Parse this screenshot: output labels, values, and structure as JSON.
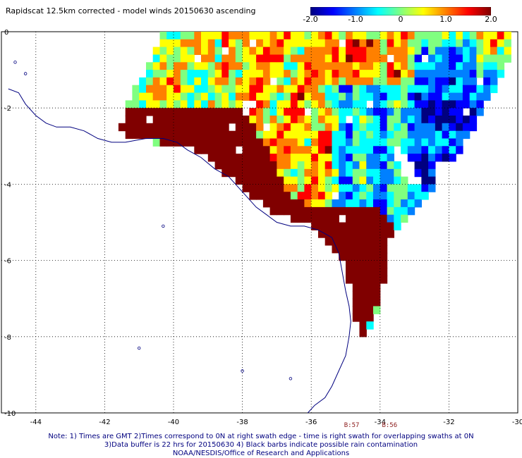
{
  "title": "Rapidscat 12.5km corrected - model winds 20150630 ascending",
  "colorbar": {
    "labels": [
      "-2.0",
      "-1.0",
      "0",
      "1.0",
      "2.0"
    ],
    "label_values": [
      -2.0,
      -1.0,
      0.0,
      1.0,
      2.0
    ],
    "range": [
      -2.0,
      2.0
    ],
    "colors": [
      "#000080",
      "#0000ff",
      "#0080ff",
      "#00ffff",
      "#80ff80",
      "#ffff00",
      "#ff8000",
      "#ff0000",
      "#800000"
    ]
  },
  "map": {
    "lon_range": [
      -45,
      -30
    ],
    "lat_range": [
      -10,
      0
    ],
    "x_ticks": [
      "-44",
      "-42",
      "-40",
      "-38",
      "-36",
      "-34",
      "-32",
      "-30"
    ],
    "x_tick_values": [
      -44,
      -42,
      -40,
      -38,
      -36,
      -34,
      -32,
      -30
    ],
    "y_ticks": [
      "0",
      "-2",
      "-4",
      "-6",
      "-8",
      "-10"
    ],
    "y_tick_values": [
      0,
      -2,
      -4,
      -6,
      -8,
      -10
    ],
    "coastline_color": "#00007f",
    "grid": true
  },
  "swath": {
    "grid_step_deg": 0.2,
    "dark_red_region": "coastal band along the Brazilian coast from -41.5 to -34 longitude",
    "blue_region": "east side of swath near -33 longitude"
  },
  "time_labels": [
    {
      "text": "B:57",
      "lon": -34.8
    },
    {
      "text": "B:56",
      "lon": -33.7
    }
  ],
  "notes": [
    "Note: 1) Times are GMT 2)Times correspond to 0N at right swath edge - time is right swath for overlapping swaths at 0N",
    "3)Data buffer is 22 hrs for 20150630 4) Black barbs indicate possible rain contamination",
    "NOAA/NESDIS/Office of Research and Applications"
  ]
}
